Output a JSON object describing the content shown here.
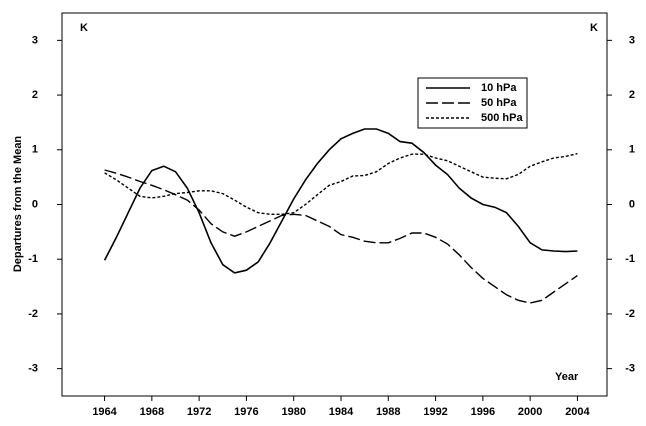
{
  "chart_data": {
    "type": "line",
    "y_label": "Departures from the Mean",
    "y_unit": "K",
    "y2_unit": "K",
    "x_label": "Year",
    "x": [
      1964,
      1965,
      1966,
      1967,
      1968,
      1969,
      1970,
      1971,
      1972,
      1973,
      1974,
      1975,
      1976,
      1977,
      1978,
      1979,
      1980,
      1981,
      1982,
      1983,
      1984,
      1985,
      1986,
      1987,
      1988,
      1989,
      1990,
      1991,
      1992,
      1993,
      1994,
      1995,
      1996,
      1997,
      1998,
      1999,
      2000,
      2001,
      2002,
      2003,
      2004
    ],
    "series": [
      {
        "name": "10 hPa",
        "color": "#000000",
        "linestyle": "solid",
        "values": [
          -1.02,
          -0.6,
          -0.15,
          0.3,
          0.62,
          0.7,
          0.6,
          0.3,
          -0.15,
          -0.7,
          -1.1,
          -1.25,
          -1.2,
          -1.05,
          -0.7,
          -0.3,
          0.1,
          0.45,
          0.75,
          1.0,
          1.2,
          1.3,
          1.38,
          1.38,
          1.3,
          1.15,
          1.12,
          0.95,
          0.72,
          0.55,
          0.3,
          0.12,
          0.0,
          -0.05,
          -0.15,
          -0.4,
          -0.7,
          -0.83,
          -0.85,
          -0.86,
          -0.85
        ]
      },
      {
        "name": "50 hPa",
        "color": "#000000",
        "linestyle": "dashed",
        "values": [
          0.63,
          0.57,
          0.5,
          0.42,
          0.35,
          0.27,
          0.18,
          0.08,
          -0.1,
          -0.35,
          -0.5,
          -0.58,
          -0.5,
          -0.4,
          -0.3,
          -0.2,
          -0.18,
          -0.2,
          -0.3,
          -0.4,
          -0.55,
          -0.6,
          -0.67,
          -0.7,
          -0.7,
          -0.62,
          -0.52,
          -0.52,
          -0.6,
          -0.72,
          -0.92,
          -1.15,
          -1.35,
          -1.5,
          -1.65,
          -1.75,
          -1.8,
          -1.75,
          -1.6,
          -1.45,
          -1.3
        ]
      },
      {
        "name": "500 hPa",
        "color": "#000000",
        "linestyle": "dotted",
        "values": [
          0.58,
          0.45,
          0.3,
          0.15,
          0.12,
          0.15,
          0.2,
          0.22,
          0.25,
          0.25,
          0.2,
          0.08,
          -0.05,
          -0.15,
          -0.18,
          -0.18,
          -0.15,
          0.0,
          0.18,
          0.35,
          0.42,
          0.52,
          0.53,
          0.6,
          0.75,
          0.85,
          0.92,
          0.92,
          0.85,
          0.8,
          0.7,
          0.6,
          0.5,
          0.48,
          0.47,
          0.55,
          0.7,
          0.78,
          0.85,
          0.88,
          0.93
        ]
      }
    ],
    "xlim": [
      1960.4,
      2006.5
    ],
    "xticks": [
      1964,
      1968,
      1972,
      1976,
      1980,
      1984,
      1988,
      1992,
      1996,
      2000,
      2004
    ],
    "ylim": [
      -3.5,
      3.5
    ],
    "yticks": [
      -3,
      -2,
      -1,
      0,
      1,
      2,
      3
    ],
    "y2lim": [
      -3.5,
      3.5
    ],
    "y2ticks": [
      -3,
      -2,
      -1,
      0,
      1,
      2,
      3
    ],
    "legend": "upper right"
  }
}
